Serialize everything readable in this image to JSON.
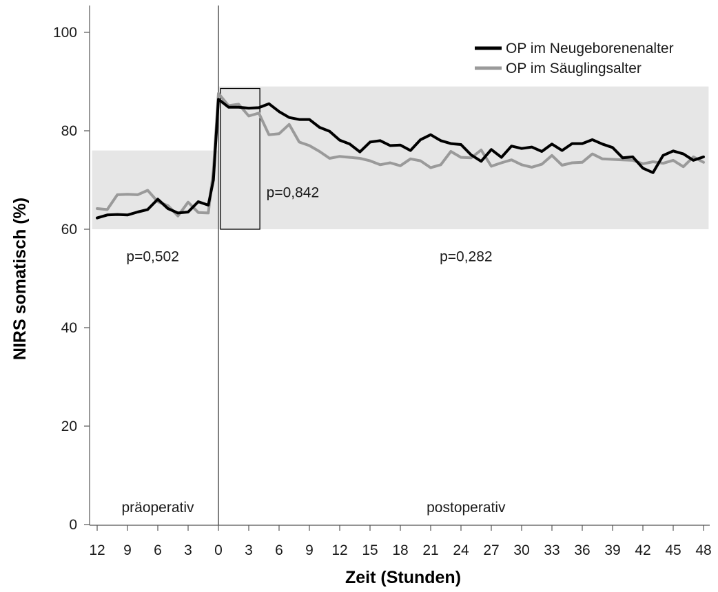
{
  "chart_data": {
    "type": "line",
    "xlabel": "Zeit (Stunden)",
    "ylabel": "NIRS somatisch (%)",
    "ylim": [
      0,
      100
    ],
    "yticks": [
      0,
      20,
      40,
      60,
      80,
      100
    ],
    "xticks": [
      -12,
      -9,
      -6,
      -3,
      0,
      3,
      6,
      9,
      12,
      15,
      18,
      21,
      24,
      27,
      30,
      33,
      36,
      39,
      42,
      45,
      48
    ],
    "xtick_labels": [
      "12",
      "9",
      "6",
      "3",
      "0",
      "3",
      "6",
      "9",
      "12",
      "15",
      "18",
      "21",
      "24",
      "27",
      "30",
      "33",
      "36",
      "39",
      "42",
      "45",
      "48"
    ],
    "grid": false,
    "legend_position": "top-right",
    "series": [
      {
        "name": "OP im Neugeborenenalter",
        "color": "#000000",
        "x": [
          -12,
          -11,
          -10,
          -9,
          -8,
          -7,
          -6,
          -5,
          -4,
          -3,
          -2,
          -1,
          -0.5,
          0,
          1,
          2,
          3,
          4,
          5,
          6,
          7,
          8,
          9,
          10,
          11,
          12,
          13,
          14,
          15,
          16,
          17,
          18,
          19,
          20,
          21,
          22,
          23,
          24,
          25,
          26,
          27,
          28,
          29,
          30,
          31,
          32,
          33,
          34,
          35,
          36,
          37,
          38,
          39,
          40,
          41,
          42,
          43,
          44,
          45,
          46,
          47,
          48
        ],
        "y": [
          62.3,
          62.9,
          63.0,
          62.9,
          63.5,
          64.0,
          66.1,
          64.2,
          63.3,
          63.5,
          65.6,
          64.9,
          70.0,
          86.4,
          84.8,
          84.8,
          84.6,
          84.7,
          85.5,
          83.9,
          82.7,
          82.3,
          82.3,
          80.7,
          79.9,
          78.1,
          77.3,
          75.7,
          77.7,
          78.0,
          77.0,
          77.1,
          76.0,
          78.2,
          79.2,
          78.0,
          77.4,
          77.2,
          75.1,
          73.8,
          76.2,
          74.6,
          76.9,
          76.4,
          76.7,
          75.8,
          77.3,
          76.0,
          77.4,
          77.4,
          78.2,
          77.3,
          76.6,
          74.5,
          74.7,
          72.4,
          71.5,
          75.0,
          75.9,
          75.3,
          74.0,
          74.7
        ]
      },
      {
        "name": "OP im Säuglingsalter",
        "color": "#9a9a9a",
        "x": [
          -12,
          -11,
          -10,
          -9,
          -8,
          -7,
          -6,
          -5,
          -4,
          -3,
          -2,
          -1,
          -0.5,
          0,
          1,
          2,
          3,
          4,
          5,
          6,
          7,
          8,
          9,
          10,
          11,
          12,
          13,
          14,
          15,
          16,
          17,
          18,
          19,
          20,
          21,
          22,
          23,
          24,
          25,
          26,
          27,
          28,
          29,
          30,
          31,
          32,
          33,
          34,
          35,
          36,
          37,
          38,
          39,
          40,
          41,
          42,
          43,
          44,
          45,
          46,
          47,
          48
        ],
        "y": [
          64.2,
          64.0,
          67.0,
          67.1,
          67.0,
          67.9,
          65.6,
          64.8,
          62.7,
          65.5,
          63.4,
          63.3,
          72.0,
          87.6,
          85.1,
          85.4,
          83.0,
          83.6,
          79.2,
          79.4,
          81.3,
          77.7,
          77.0,
          75.8,
          74.4,
          74.8,
          74.6,
          74.4,
          73.9,
          73.1,
          73.5,
          72.9,
          74.3,
          73.9,
          72.5,
          73.1,
          75.8,
          74.6,
          74.5,
          76.1,
          72.8,
          73.5,
          74.1,
          73.1,
          72.6,
          73.2,
          75.0,
          73.0,
          73.5,
          73.6,
          75.3,
          74.3,
          74.2,
          74.1,
          74.0,
          73.3,
          73.7,
          73.4,
          74.0,
          72.7,
          74.7,
          73.6
        ]
      }
    ],
    "shaded_regions": [
      {
        "x": [
          -12.5,
          0
        ],
        "y": [
          60,
          76
        ]
      },
      {
        "x": [
          0,
          48.5
        ],
        "y": [
          60,
          89
        ]
      }
    ],
    "boxes": [
      {
        "x": [
          0.2,
          4.1
        ],
        "y": [
          60,
          88.6
        ]
      }
    ],
    "vlines": [
      0
    ],
    "annotations": [
      {
        "text": "p=0,502",
        "x": -6.5,
        "y": 54.5
      },
      {
        "text": "p=0,842",
        "x": 6.8,
        "y": 67.5
      },
      {
        "text": "p=0,282",
        "x": 24.5,
        "y": 54.5
      },
      {
        "text": "präoperativ",
        "x": -6,
        "y": 3.5
      },
      {
        "text": "postoperativ",
        "x": 24.5,
        "y": 3.5
      }
    ]
  }
}
